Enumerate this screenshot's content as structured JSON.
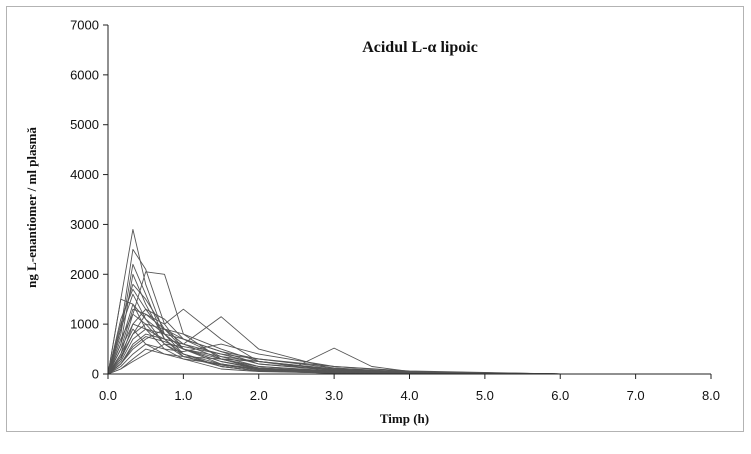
{
  "chart_data": {
    "type": "line",
    "title": "Acidul L-α lipoic",
    "xlabel": "Timp (h)",
    "ylabel": "ng L-enantiomer / ml plasmă",
    "xlim": [
      0,
      8
    ],
    "ylim": [
      0,
      7000
    ],
    "xticks": [
      "0.0",
      "1.0",
      "2.0",
      "3.0",
      "4.0",
      "5.0",
      "6.0",
      "7.0",
      "8.0"
    ],
    "yticks": [
      "0",
      "1000",
      "2000",
      "3000",
      "4000",
      "5000",
      "6000",
      "7000"
    ],
    "grid": false,
    "legend": "none",
    "line_color": "#555555",
    "series": [
      {
        "x": [
          0,
          0.17,
          0.33,
          0.5,
          0.75,
          1,
          1.5,
          2,
          3,
          4,
          6
        ],
        "values": [
          0,
          1500,
          2900,
          1800,
          800,
          400,
          150,
          60,
          20,
          5,
          0
        ]
      },
      {
        "x": [
          0,
          0.17,
          0.33,
          0.5,
          0.75,
          1,
          1.5,
          2,
          3,
          4,
          6
        ],
        "values": [
          0,
          900,
          2500,
          2100,
          1000,
          500,
          200,
          80,
          30,
          10,
          0
        ]
      },
      {
        "x": [
          0,
          0.17,
          0.33,
          0.5,
          0.75,
          1,
          1.5,
          2,
          3,
          4,
          6
        ],
        "values": [
          0,
          400,
          1200,
          2050,
          2000,
          800,
          300,
          100,
          40,
          10,
          0
        ]
      },
      {
        "x": [
          0,
          0.17,
          0.33,
          0.5,
          0.75,
          1,
          1.5,
          2,
          3,
          4,
          6
        ],
        "values": [
          0,
          1500,
          1400,
          900,
          500,
          300,
          100,
          50,
          20,
          5,
          0
        ]
      },
      {
        "x": [
          0,
          0.17,
          0.33,
          0.5,
          0.75,
          1,
          1.5,
          2,
          3,
          4,
          6
        ],
        "values": [
          0,
          300,
          800,
          1200,
          1000,
          1300,
          700,
          250,
          80,
          20,
          0
        ]
      },
      {
        "x": [
          0,
          0.17,
          0.33,
          0.5,
          0.75,
          1,
          1.5,
          2,
          3,
          4,
          6
        ],
        "values": [
          0,
          200,
          600,
          800,
          700,
          600,
          1150,
          500,
          100,
          30,
          0
        ]
      },
      {
        "x": [
          0,
          0.17,
          0.33,
          0.5,
          0.75,
          1,
          1.5,
          2,
          2.5,
          3,
          3.5,
          4,
          6
        ],
        "values": [
          0,
          100,
          300,
          500,
          400,
          350,
          300,
          250,
          150,
          520,
          150,
          50,
          0
        ]
      },
      {
        "x": [
          0,
          0.17,
          0.33,
          0.5,
          0.75,
          1,
          1.5,
          2,
          3,
          4,
          6
        ],
        "values": [
          0,
          1000,
          1800,
          1500,
          900,
          500,
          250,
          100,
          40,
          10,
          0
        ]
      },
      {
        "x": [
          0,
          0.17,
          0.33,
          0.5,
          0.75,
          1,
          1.5,
          2,
          3,
          4,
          6
        ],
        "values": [
          0,
          800,
          2200,
          1600,
          700,
          400,
          150,
          60,
          20,
          5,
          0
        ]
      },
      {
        "x": [
          0,
          0.17,
          0.33,
          0.5,
          0.75,
          1,
          1.5,
          2,
          3,
          4,
          6
        ],
        "values": [
          0,
          600,
          1400,
          1100,
          800,
          500,
          300,
          150,
          60,
          20,
          0
        ]
      },
      {
        "x": [
          0,
          0.17,
          0.33,
          0.5,
          0.75,
          1,
          1.5,
          2,
          3,
          4,
          6
        ],
        "values": [
          0,
          500,
          1000,
          900,
          700,
          600,
          400,
          200,
          80,
          30,
          0
        ]
      },
      {
        "x": [
          0,
          0.17,
          0.33,
          0.5,
          0.75,
          1,
          1.5,
          2,
          3,
          4,
          6
        ],
        "values": [
          0,
          200,
          500,
          700,
          900,
          800,
          500,
          250,
          100,
          40,
          0
        ]
      },
      {
        "x": [
          0,
          0.17,
          0.33,
          0.5,
          0.75,
          1,
          1.5,
          2,
          3,
          4,
          6
        ],
        "values": [
          0,
          700,
          1200,
          1000,
          600,
          400,
          200,
          80,
          30,
          10,
          0
        ]
      },
      {
        "x": [
          0,
          0.17,
          0.33,
          0.5,
          0.75,
          1,
          1.5,
          2,
          3,
          4,
          6
        ],
        "values": [
          0,
          300,
          1000,
          1300,
          1100,
          700,
          350,
          150,
          50,
          15,
          0
        ]
      },
      {
        "x": [
          0,
          0.17,
          0.33,
          0.5,
          0.75,
          1,
          1.5,
          2,
          3,
          4,
          6
        ],
        "values": [
          0,
          400,
          900,
          600,
          400,
          300,
          200,
          100,
          40,
          10,
          0
        ]
      },
      {
        "x": [
          0,
          0.17,
          0.33,
          0.5,
          0.75,
          1,
          1.5,
          2,
          3,
          4,
          6
        ],
        "values": [
          0,
          150,
          400,
          600,
          500,
          450,
          600,
          400,
          150,
          50,
          0
        ]
      },
      {
        "x": [
          0,
          0.17,
          0.33,
          0.5,
          0.75,
          1,
          1.5,
          2,
          3,
          4,
          6
        ],
        "values": [
          0,
          1100,
          1700,
          1300,
          800,
          500,
          250,
          120,
          40,
          10,
          0
        ]
      },
      {
        "x": [
          0,
          0.17,
          0.33,
          0.5,
          0.75,
          1,
          1.5,
          2,
          3,
          4,
          6
        ],
        "values": [
          0,
          250,
          700,
          900,
          800,
          700,
          450,
          300,
          120,
          40,
          0
        ]
      },
      {
        "x": [
          0,
          0.17,
          0.33,
          0.5,
          0.75,
          1,
          1.5,
          2,
          3,
          4,
          6
        ],
        "values": [
          0,
          600,
          2000,
          1400,
          700,
          350,
          150,
          60,
          20,
          5,
          0
        ]
      },
      {
        "x": [
          0,
          0.17,
          0.33,
          0.5,
          0.75,
          1,
          1.5,
          2,
          3,
          4,
          6
        ],
        "values": [
          0,
          100,
          250,
          400,
          600,
          550,
          400,
          300,
          150,
          60,
          0
        ]
      },
      {
        "x": [
          0,
          0.17,
          0.33,
          0.5,
          0.75,
          1,
          1.5,
          2,
          3,
          4,
          6
        ],
        "values": [
          0,
          500,
          1300,
          1200,
          900,
          600,
          300,
          120,
          50,
          15,
          0
        ]
      },
      {
        "x": [
          0,
          0.17,
          0.33,
          0.5,
          0.75,
          1,
          1.5,
          2,
          3,
          4,
          6
        ],
        "values": [
          0,
          350,
          800,
          1000,
          900,
          700,
          450,
          200,
          70,
          20,
          0
        ]
      },
      {
        "x": [
          0,
          0.17,
          0.33,
          0.5,
          0.75,
          1,
          1.5,
          2,
          3,
          4,
          6
        ],
        "values": [
          0,
          900,
          1600,
          1100,
          600,
          350,
          180,
          80,
          30,
          10,
          0
        ]
      },
      {
        "x": [
          0,
          0.17,
          0.33,
          0.5,
          0.75,
          1,
          1.5,
          2,
          3,
          4,
          6
        ],
        "values": [
          0,
          200,
          550,
          750,
          650,
          500,
          350,
          250,
          100,
          30,
          0
        ]
      }
    ]
  }
}
